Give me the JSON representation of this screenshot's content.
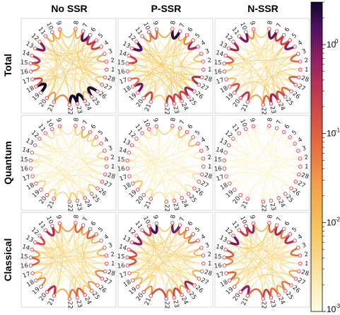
{
  "columns": [
    "No SSR",
    "P-SSR",
    "N-SSR"
  ],
  "rows": [
    "Total",
    "Quantum",
    "Classical"
  ],
  "node_labels": [
    "1",
    "2",
    "3",
    "4",
    "5",
    "6",
    "7",
    "8",
    "9",
    "10",
    "11",
    "12",
    "13",
    "14",
    "15",
    "16",
    "17",
    "18",
    "19",
    "20",
    "21",
    "22",
    "23",
    "24",
    "25",
    "26",
    "27",
    "28"
  ],
  "colorbar": {
    "scale": "log",
    "range": [
      0.001,
      3
    ],
    "ticks": [
      {
        "value": 0.001,
        "base": "10",
        "exp": "-3"
      },
      {
        "value": 0.01,
        "base": "10",
        "exp": "-2"
      },
      {
        "value": 0.1,
        "base": "10",
        "exp": "-1"
      },
      {
        "value": 1,
        "base": "10",
        "exp": "0"
      }
    ],
    "colormap": "inferno"
  },
  "panel_strength": {
    "Total": {
      "No SSR": 1.0,
      "P-SSR": 1.0,
      "N-SSR": 0.9
    },
    "Quantum": {
      "No SSR": 0.35,
      "P-SSR": 0.3,
      "N-SSR": 0.08
    },
    "Classical": {
      "No SSR": 0.85,
      "P-SSR": 0.9,
      "N-SSR": 0.85
    }
  },
  "colors": {
    "node_stroke": "#e8383c",
    "frame": "#cfcfcf"
  }
}
